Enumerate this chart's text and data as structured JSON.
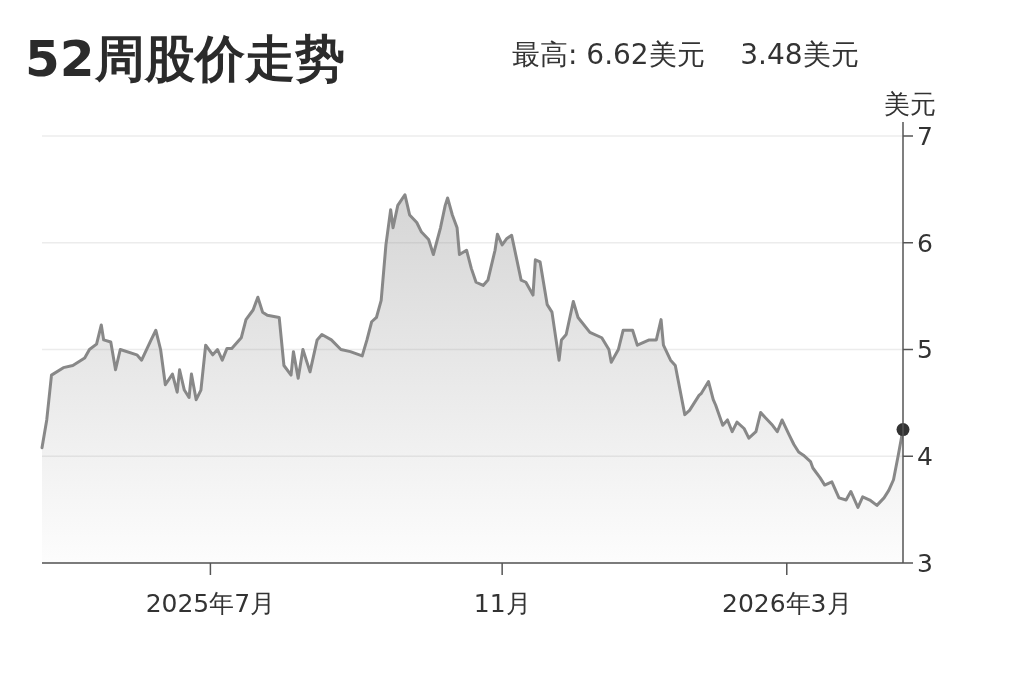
{
  "chart_data": {
    "type": "area",
    "title": "52周股价走势",
    "subtitle": "最高: 6.62美元    3.48美元",
    "ylabel": "美元",
    "xlim": [
      "2025-04-21",
      "2026-04-19"
    ],
    "xticks": [
      {
        "value": "2025-07-01",
        "label": "2025年7月"
      },
      {
        "value": "2025-11-01",
        "label": "11月"
      },
      {
        "value": "2026-03-01",
        "label": "2026年3月"
      }
    ],
    "ylim": [
      3,
      7
    ],
    "yticks": [
      3,
      4,
      5,
      6,
      7
    ],
    "grid": "y",
    "series": [
      {
        "color": "#888888",
        "x": [
          "2025-04-21",
          "2025-04-23",
          "2025-04-25",
          "2025-04-30",
          "2025-05-04",
          "2025-05-09",
          "2025-05-11",
          "2025-05-14",
          "2025-05-16",
          "2025-05-17",
          "2025-05-20",
          "2025-05-22",
          "2025-05-24",
          "2025-05-31",
          "2025-06-02",
          "2025-06-06",
          "2025-06-08",
          "2025-06-10",
          "2025-06-12",
          "2025-06-15",
          "2025-06-17",
          "2025-06-18",
          "2025-06-20",
          "2025-06-22",
          "2025-06-23",
          "2025-06-25",
          "2025-06-27",
          "2025-06-29",
          "2025-07-02",
          "2025-07-04",
          "2025-07-06",
          "2025-07-08",
          "2025-07-10",
          "2025-07-14",
          "2025-07-16",
          "2025-07-19",
          "2025-07-21",
          "2025-07-23",
          "2025-07-25",
          "2025-07-30",
          "2025-08-01",
          "2025-08-04",
          "2025-08-05",
          "2025-08-07",
          "2025-08-09",
          "2025-08-12",
          "2025-08-15",
          "2025-08-17",
          "2025-08-21",
          "2025-08-25",
          "2025-08-29",
          "2025-09-03",
          "2025-09-05",
          "2025-09-07",
          "2025-09-09",
          "2025-09-11",
          "2025-09-13",
          "2025-09-15",
          "2025-09-16",
          "2025-09-18",
          "2025-09-21",
          "2025-09-23",
          "2025-09-26",
          "2025-09-28",
          "2025-10-01",
          "2025-10-03",
          "2025-10-06",
          "2025-10-08",
          "2025-10-09",
          "2025-10-11",
          "2025-10-13",
          "2025-10-14",
          "2025-10-17",
          "2025-10-19",
          "2025-10-21",
          "2025-10-24",
          "2025-10-26",
          "2025-10-29",
          "2025-10-30",
          "2025-11-01",
          "2025-11-03",
          "2025-11-05",
          "2025-11-09",
          "2025-11-11",
          "2025-11-14",
          "2025-11-15",
          "2025-11-17",
          "2025-11-20",
          "2025-11-22",
          "2025-11-25",
          "2025-11-26",
          "2025-11-28",
          "2025-12-01",
          "2025-12-03",
          "2025-12-08",
          "2025-12-13",
          "2025-12-16",
          "2025-12-17",
          "2025-12-20",
          "2025-12-22",
          "2025-12-26",
          "2025-12-28",
          "2026-01-02",
          "2026-01-05",
          "2026-01-07",
          "2026-01-08",
          "2026-01-11",
          "2026-01-13",
          "2026-01-17",
          "2026-01-19",
          "2026-01-23",
          "2026-01-24",
          "2026-01-27",
          "2026-01-29",
          "2026-01-30",
          "2026-02-02",
          "2026-02-04",
          "2026-02-06",
          "2026-02-08",
          "2026-02-11",
          "2026-02-13",
          "2026-02-16",
          "2026-02-18",
          "2026-02-20",
          "2026-02-23",
          "2026-02-25",
          "2026-02-27",
          "2026-03-02",
          "2026-03-04",
          "2026-03-06",
          "2026-03-08",
          "2026-03-11",
          "2026-03-12",
          "2026-03-15",
          "2026-03-17",
          "2026-03-20",
          "2026-03-23",
          "2026-03-26",
          "2026-03-28",
          "2026-03-31",
          "2026-04-02",
          "2026-04-05",
          "2026-04-08",
          "2026-04-11",
          "2026-04-13",
          "2026-04-15",
          "2026-04-17",
          "2026-04-19"
        ],
        "values": [
          4.08,
          4.34,
          4.76,
          4.83,
          4.85,
          4.92,
          5.0,
          5.05,
          5.23,
          5.09,
          5.07,
          4.81,
          5.0,
          4.95,
          4.9,
          5.09,
          5.18,
          5.0,
          4.67,
          4.77,
          4.6,
          4.81,
          4.62,
          4.55,
          4.77,
          4.53,
          4.62,
          5.04,
          4.95,
          5.0,
          4.9,
          5.01,
          5.01,
          5.11,
          5.28,
          5.37,
          5.49,
          5.35,
          5.32,
          5.3,
          4.85,
          4.76,
          4.98,
          4.73,
          5.0,
          4.79,
          5.09,
          5.14,
          5.09,
          5.0,
          4.98,
          4.94,
          5.09,
          5.26,
          5.3,
          5.46,
          5.98,
          6.31,
          6.14,
          6.35,
          6.45,
          6.26,
          6.19,
          6.1,
          6.03,
          5.89,
          6.14,
          6.35,
          6.42,
          6.26,
          6.14,
          5.89,
          5.93,
          5.76,
          5.63,
          5.6,
          5.65,
          5.93,
          6.08,
          5.98,
          6.04,
          6.07,
          5.65,
          5.63,
          5.51,
          5.84,
          5.82,
          5.42,
          5.35,
          4.9,
          5.09,
          5.14,
          5.45,
          5.3,
          5.16,
          5.11,
          5.0,
          4.88,
          5.0,
          5.18,
          5.18,
          5.04,
          5.09,
          5.09,
          5.28,
          5.04,
          4.9,
          4.85,
          4.39,
          4.43,
          4.57,
          4.59,
          4.7,
          4.53,
          4.48,
          4.29,
          4.34,
          4.23,
          4.32,
          4.26,
          4.17,
          4.23,
          4.41,
          4.36,
          4.29,
          4.23,
          4.34,
          4.2,
          4.11,
          4.04,
          4.01,
          3.95,
          3.89,
          3.8,
          3.73,
          3.76,
          3.61,
          3.59,
          3.67,
          3.52,
          3.62,
          3.59,
          3.54,
          3.61,
          3.68,
          3.78,
          4.01,
          4.25
        ]
      },
      {
        "type": "scatter",
        "color": "#333333",
        "marker": "circle",
        "x": [
          "2026-04-19"
        ],
        "values": [
          4.25
        ]
      }
    ]
  }
}
